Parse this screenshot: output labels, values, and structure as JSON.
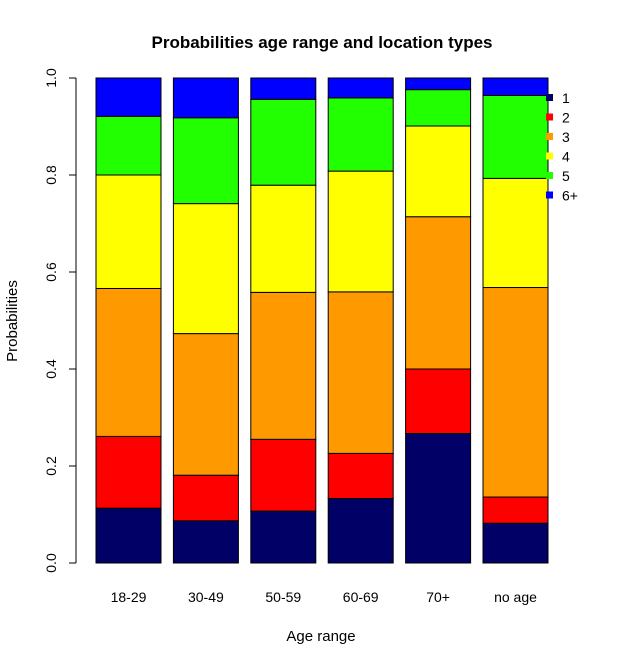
{
  "chart_data": {
    "type": "bar",
    "stacked": true,
    "title": "Probabilities age range and location types",
    "xlabel": "Age range",
    "ylabel": "Probabilities",
    "ylim": [
      0,
      1
    ],
    "yticks": [
      "0.0",
      "0.2",
      "0.4",
      "0.6",
      "0.8",
      "1.0"
    ],
    "grid": false,
    "legend_position": "top-right",
    "categories": [
      "18-29",
      "30-49",
      "50-59",
      "60-69",
      "70+",
      "no age"
    ],
    "series": [
      {
        "name": "1",
        "color": "#000066",
        "values": [
          0.113,
          0.087,
          0.107,
          0.133,
          0.267,
          0.082
        ]
      },
      {
        "name": "2",
        "color": "#ff0000",
        "values": [
          0.148,
          0.094,
          0.148,
          0.093,
          0.133,
          0.054
        ]
      },
      {
        "name": "3",
        "color": "#ff9900",
        "values": [
          0.305,
          0.292,
          0.303,
          0.333,
          0.314,
          0.432
        ]
      },
      {
        "name": "4",
        "color": "#ffff00",
        "values": [
          0.234,
          0.268,
          0.221,
          0.249,
          0.187,
          0.225
        ]
      },
      {
        "name": "5",
        "color": "#22ff00",
        "values": [
          0.121,
          0.177,
          0.177,
          0.151,
          0.075,
          0.171
        ]
      },
      {
        "name": "6+",
        "color": "#0000ff",
        "values": [
          0.079,
          0.082,
          0.044,
          0.041,
          0.024,
          0.036
        ]
      }
    ]
  }
}
